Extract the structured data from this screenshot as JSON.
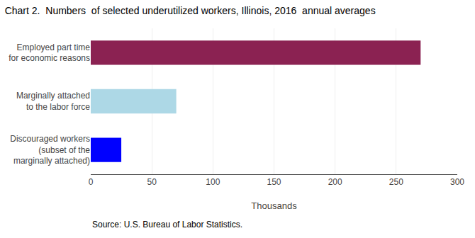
{
  "chart_data": {
    "type": "bar",
    "title": "Chart 2.  Numbers  of selected underutilized workers, Illinois, 2016  annual averages",
    "orientation": "horizontal",
    "categories": [
      "Discouraged workers\n(subset of the\nmarginally attached)",
      "Marginally attached\nto the labor force",
      "Employed part time\nfor economic reasons"
    ],
    "values": [
      25,
      70,
      270
    ],
    "colors": [
      "#0000ff",
      "#add8e6",
      "#8b2252"
    ],
    "xlabel": "Thousands",
    "xlim": [
      0,
      300
    ],
    "xticks": [
      0,
      50,
      100,
      150,
      200,
      250,
      300
    ],
    "grid": true,
    "annotations": [
      "Source: U.S. Bureau of Labor Statistics."
    ]
  }
}
